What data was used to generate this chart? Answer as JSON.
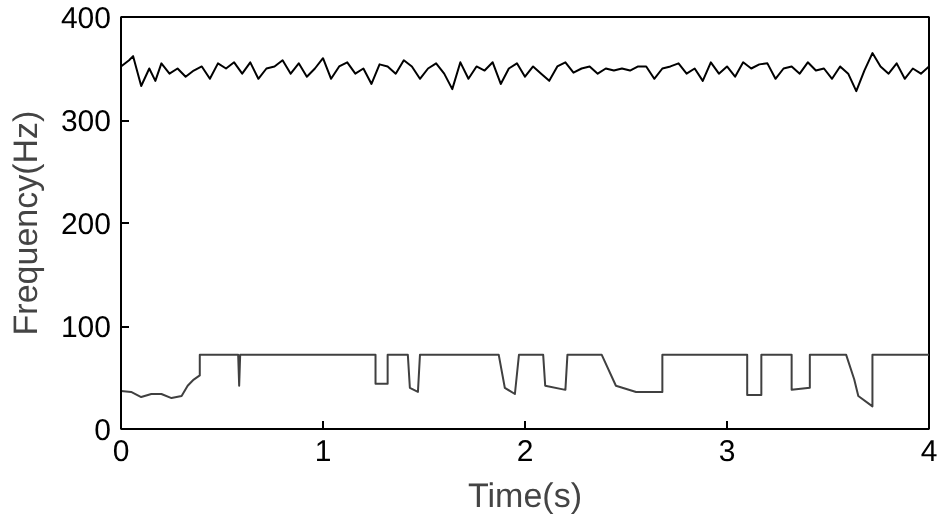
{
  "chart_data": {
    "type": "line",
    "xlabel": "Time(s)",
    "ylabel": "Frequency(Hz)",
    "xlim": [
      0,
      4
    ],
    "ylim": [
      0,
      400
    ],
    "xticks": [
      0,
      1,
      2,
      3,
      4
    ],
    "yticks": [
      0,
      100,
      200,
      300,
      400
    ],
    "grid": false,
    "marker": "none",
    "line_style": "solid",
    "series": [
      {
        "color": "#000000",
        "x": [
          0,
          0.04,
          0.06,
          0.1,
          0.14,
          0.17,
          0.2,
          0.24,
          0.28,
          0.32,
          0.36,
          0.4,
          0.44,
          0.48,
          0.52,
          0.56,
          0.6,
          0.64,
          0.68,
          0.72,
          0.76,
          0.8,
          0.84,
          0.88,
          0.92,
          0.96,
          1.0,
          1.04,
          1.08,
          1.12,
          1.16,
          1.2,
          1.24,
          1.28,
          1.32,
          1.36,
          1.4,
          1.44,
          1.48,
          1.52,
          1.56,
          1.6,
          1.64,
          1.68,
          1.72,
          1.76,
          1.8,
          1.84,
          1.88,
          1.92,
          1.96,
          2.0,
          2.04,
          2.08,
          2.12,
          2.16,
          2.2,
          2.24,
          2.28,
          2.32,
          2.36,
          2.4,
          2.44,
          2.48,
          2.52,
          2.56,
          2.6,
          2.64,
          2.68,
          2.72,
          2.76,
          2.8,
          2.84,
          2.88,
          2.92,
          2.96,
          3.0,
          3.04,
          3.08,
          3.12,
          3.16,
          3.2,
          3.24,
          3.28,
          3.32,
          3.36,
          3.4,
          3.44,
          3.48,
          3.52,
          3.56,
          3.6,
          3.64,
          3.68,
          3.72,
          3.76,
          3.8,
          3.84,
          3.88,
          3.92,
          3.96,
          4.0
        ],
        "values": [
          352,
          358,
          362,
          333,
          350,
          338,
          355,
          345,
          350,
          342,
          348,
          352,
          340,
          355,
          350,
          356,
          345,
          356,
          340,
          350,
          352,
          358,
          345,
          355,
          342,
          350,
          360,
          340,
          352,
          356,
          345,
          350,
          335,
          354,
          352,
          345,
          358,
          352,
          340,
          350,
          355,
          345,
          330,
          356,
          340,
          352,
          348,
          356,
          335,
          350,
          355,
          342,
          352,
          345,
          338,
          352,
          356,
          346,
          350,
          352,
          345,
          350,
          348,
          350,
          348,
          352,
          352,
          340,
          350,
          352,
          355,
          345,
          350,
          338,
          356,
          345,
          352,
          342,
          356,
          350,
          354,
          355,
          340,
          350,
          352,
          345,
          356,
          348,
          350,
          340,
          352,
          345,
          328,
          348,
          365,
          352,
          345,
          355,
          340,
          350,
          345,
          352
        ]
      },
      {
        "color": "#404040",
        "x": [
          0,
          0.05,
          0.1,
          0.15,
          0.2,
          0.25,
          0.3,
          0.33,
          0.36,
          0.39,
          0.39,
          0.58,
          0.585,
          0.59,
          1.26,
          1.26,
          1.32,
          1.32,
          1.42,
          1.43,
          1.47,
          1.48,
          1.87,
          1.9,
          1.95,
          1.97,
          2.09,
          2.1,
          2.2,
          2.21,
          2.38,
          2.45,
          2.55,
          2.68,
          2.68,
          3.1,
          3.1,
          3.17,
          3.17,
          3.32,
          3.32,
          3.41,
          3.41,
          3.59,
          3.63,
          3.65,
          3.72,
          3.72,
          4.0
        ],
        "values": [
          37,
          36,
          31,
          34,
          34,
          30,
          32,
          42,
          48,
          52,
          72,
          72,
          42,
          72,
          72,
          44,
          44,
          72,
          72,
          40,
          36,
          72,
          72,
          40,
          34,
          72,
          72,
          42,
          38,
          72,
          72,
          42,
          36,
          36,
          72,
          72,
          33,
          33,
          72,
          72,
          38,
          40,
          72,
          72,
          48,
          32,
          22,
          72,
          72
        ]
      }
    ]
  }
}
